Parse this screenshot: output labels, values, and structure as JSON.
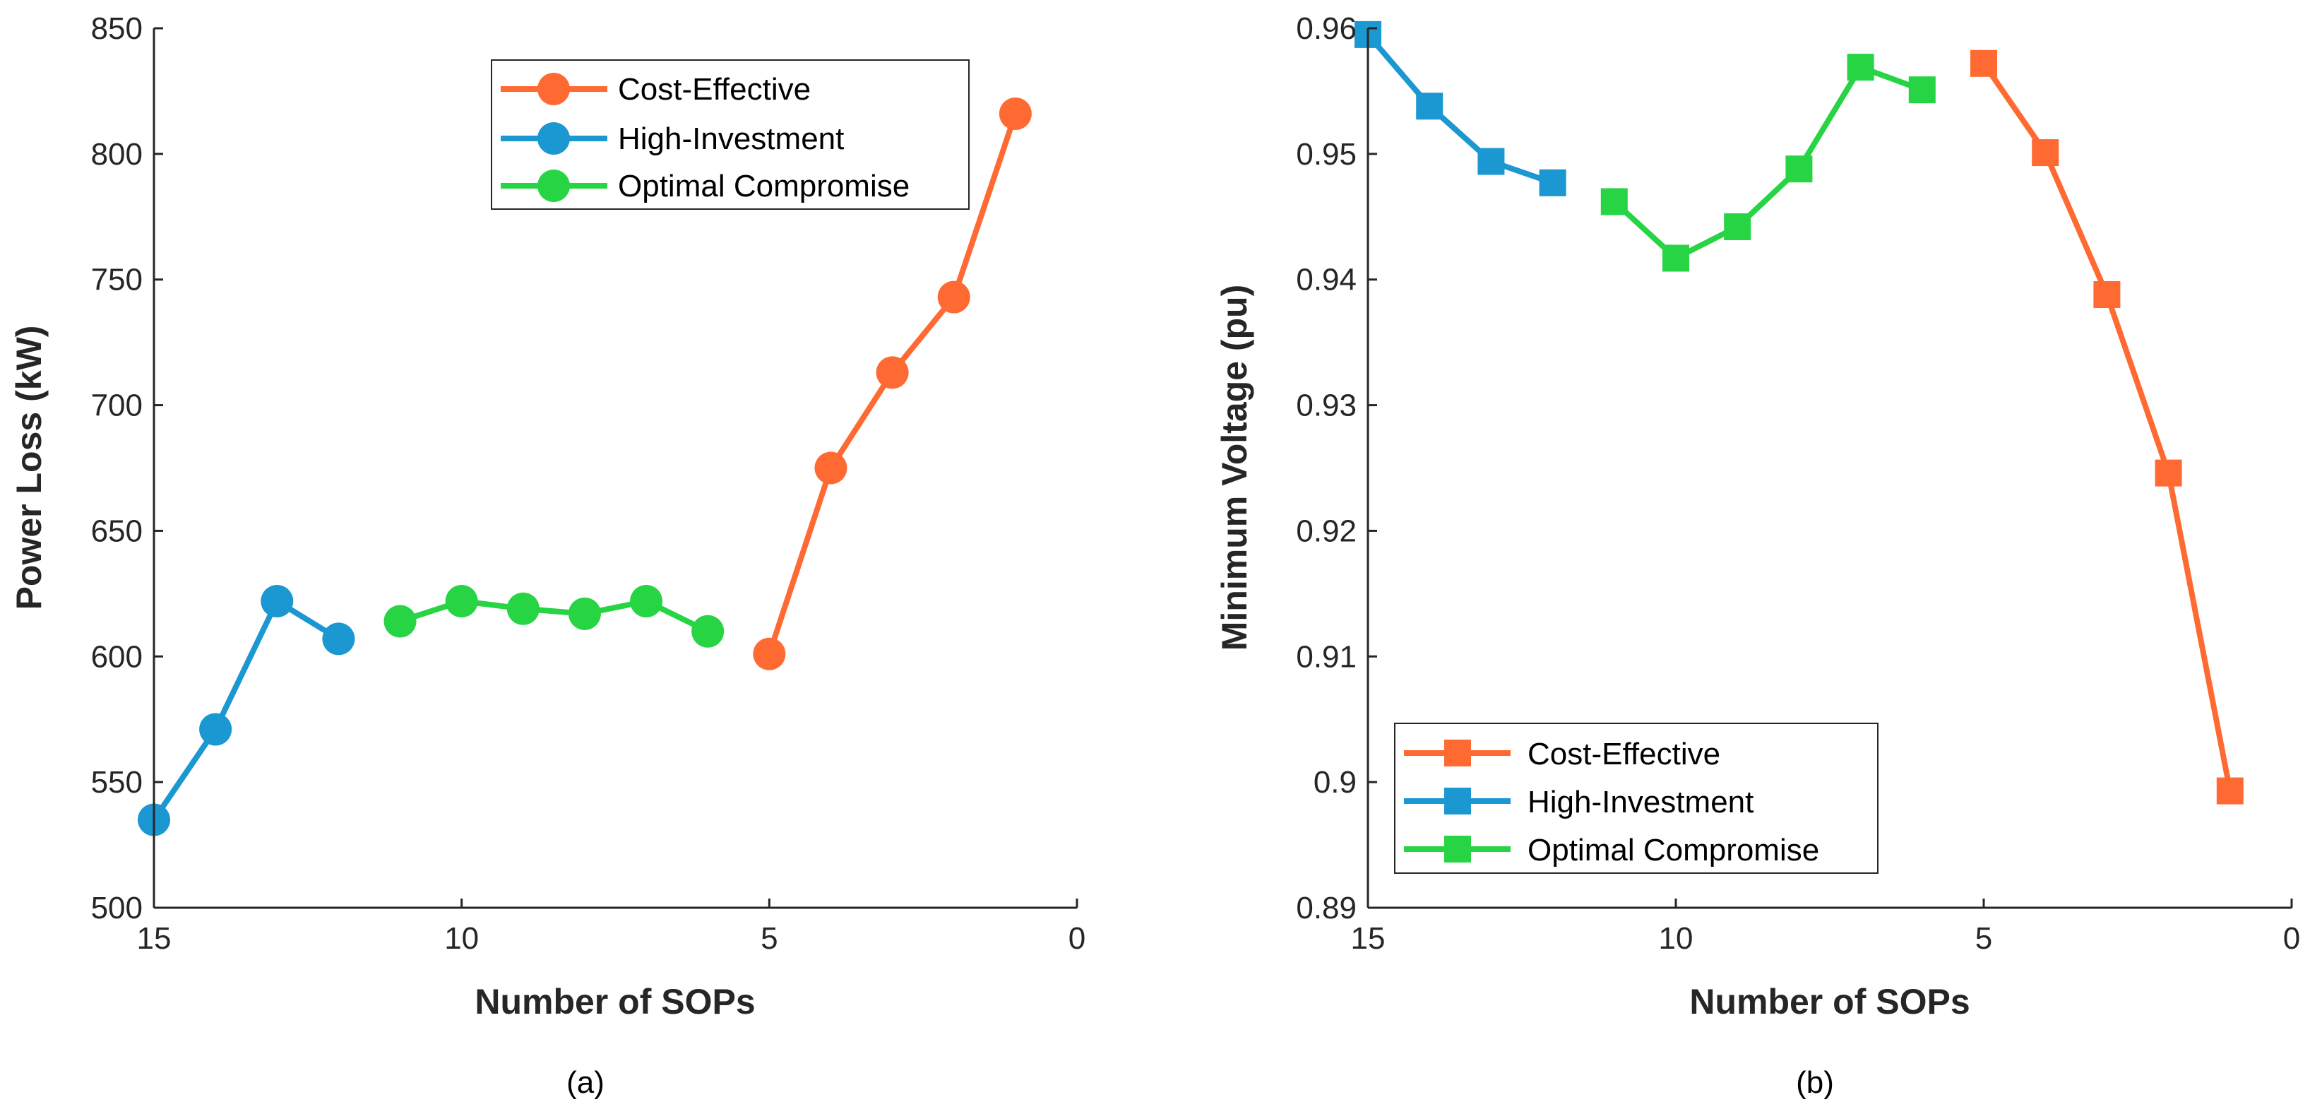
{
  "colors": {
    "cost_effective": "#ff6a33",
    "high_investment": "#1b97d1",
    "optimal_compromise": "#26d444",
    "axis": "#262626"
  },
  "chart_data": [
    {
      "id": "a",
      "type": "line",
      "caption": "(a)",
      "xlabel": "Number of SOPs",
      "ylabel": "Power Loss (kW)",
      "xlim": [
        15,
        0
      ],
      "ylim": [
        500,
        850
      ],
      "xticks": [
        15,
        10,
        5,
        0
      ],
      "yticks": [
        500,
        550,
        600,
        650,
        700,
        750,
        800,
        850
      ],
      "xtick_labels": [
        "15",
        "10",
        "5",
        "0"
      ],
      "ytick_labels": [
        "500",
        "550",
        "600",
        "650",
        "700",
        "750",
        "800",
        "850"
      ],
      "marker": "circle",
      "legend_position": "top-right",
      "series": [
        {
          "name": "Cost-Effective",
          "color_key": "cost_effective",
          "x": [
            5,
            4,
            3,
            2,
            1
          ],
          "y": [
            601,
            675,
            713,
            743,
            816
          ]
        },
        {
          "name": "High-Investment",
          "color_key": "high_investment",
          "x": [
            15,
            14,
            13,
            12
          ],
          "y": [
            535,
            571,
            622,
            607
          ]
        },
        {
          "name": "Optimal Compromise",
          "color_key": "optimal_compromise",
          "x": [
            11,
            10,
            9,
            8,
            7,
            6
          ],
          "y": [
            614,
            622,
            619,
            617,
            622,
            610
          ]
        }
      ]
    },
    {
      "id": "b",
      "type": "line",
      "caption": "(b)",
      "xlabel": "Number of SOPs",
      "ylabel": "Minimum Voltage (pu)",
      "xlim": [
        15,
        0
      ],
      "ylim": [
        0.89,
        0.96
      ],
      "xticks": [
        15,
        10,
        5,
        0
      ],
      "yticks": [
        0.89,
        0.9,
        0.91,
        0.92,
        0.93,
        0.94,
        0.95,
        0.96
      ],
      "xtick_labels": [
        "15",
        "10",
        "5",
        "0"
      ],
      "ytick_labels": [
        "0.89",
        "0.9",
        "0.91",
        "0.92",
        "0.93",
        "0.94",
        "0.95",
        "0.96"
      ],
      "marker": "square",
      "legend_position": "bottom-left",
      "series": [
        {
          "name": "Cost-Effective",
          "color_key": "cost_effective",
          "x": [
            5,
            4,
            3,
            2,
            1
          ],
          "y": [
            0.9572,
            0.9501,
            0.9388,
            0.9246,
            0.8993
          ]
        },
        {
          "name": "High-Investment",
          "color_key": "high_investment",
          "x": [
            15,
            14,
            13,
            12
          ],
          "y": [
            0.9595,
            0.9538,
            0.9494,
            0.9477
          ]
        },
        {
          "name": "Optimal Compromise",
          "color_key": "optimal_compromise",
          "x": [
            11,
            10,
            9,
            8,
            7,
            6
          ],
          "y": [
            0.9462,
            0.9417,
            0.9442,
            0.9488,
            0.9569,
            0.9551
          ]
        }
      ]
    }
  ]
}
